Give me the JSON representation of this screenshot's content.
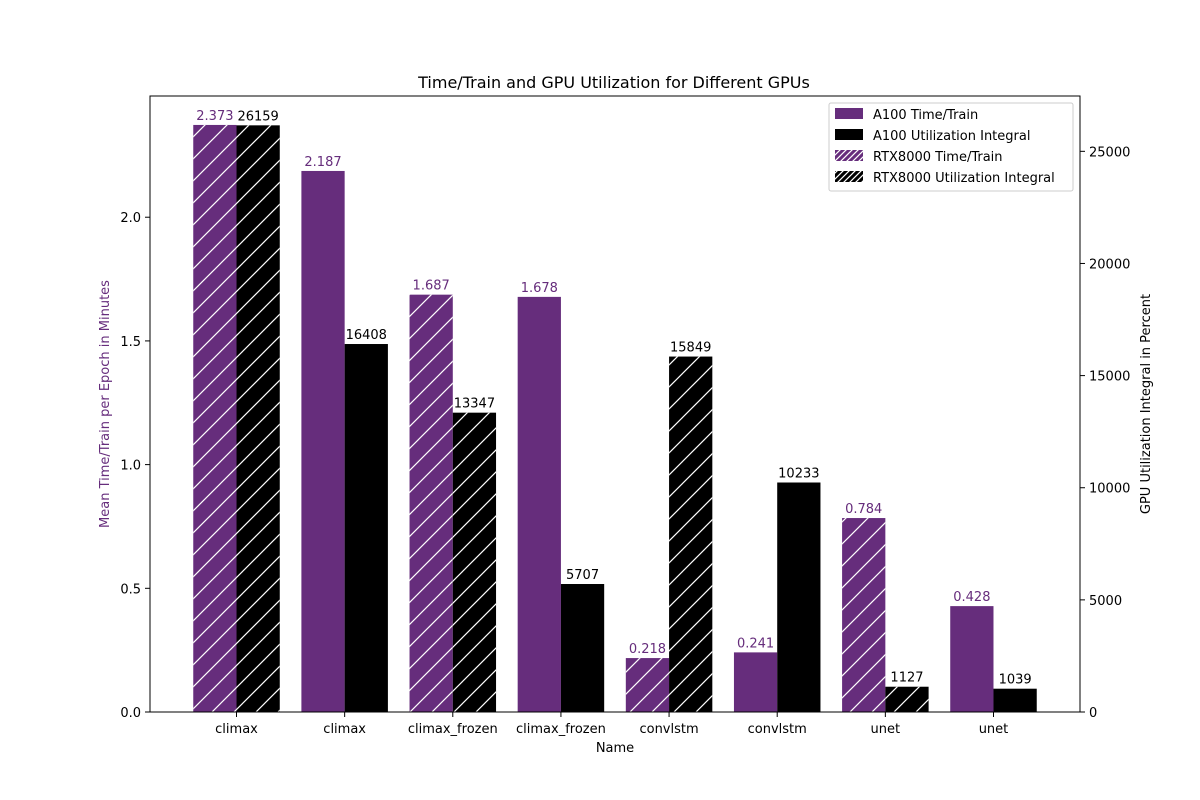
{
  "chart_data": {
    "type": "bar",
    "title": "Time/Train and GPU Utilization for Different GPUs",
    "xlabel": "Name",
    "ylabel_left": "Mean Time/Train per Epoch in Minutes",
    "ylabel_right": "GPU Utilization Integral in Percent",
    "categories": [
      "climax",
      "climax",
      "climax_frozen",
      "climax_frozen",
      "convlstm",
      "convlstm",
      "unet",
      "unet"
    ],
    "gpus": [
      "RTX8000",
      "A100",
      "RTX8000",
      "A100",
      "RTX8000",
      "A100",
      "RTX8000",
      "A100"
    ],
    "series": [
      {
        "name": "Time/Train",
        "axis": "left",
        "values": [
          2.373,
          2.187,
          1.687,
          1.678,
          0.218,
          0.241,
          0.784,
          0.428
        ],
        "labels": [
          "2.373",
          "2.187",
          "1.687",
          "1.678",
          "0.218",
          "0.241",
          "0.784",
          "0.428"
        ]
      },
      {
        "name": "Utilization Integral",
        "axis": "right",
        "values": [
          26159,
          16408,
          13347,
          5707,
          15849,
          10233,
          1127,
          1039
        ],
        "labels": [
          "26159",
          "16408",
          "13347",
          "5707",
          "15849",
          "10233",
          "1127",
          "1039"
        ]
      }
    ],
    "ylim_left": [
      0,
      2.49
    ],
    "ylim_right": [
      0,
      27467
    ],
    "yticks_left": [
      "0.0",
      "0.5",
      "1.0",
      "1.5",
      "2.0"
    ],
    "yticks_right": [
      "0",
      "5000",
      "10000",
      "15000",
      "20000",
      "25000"
    ],
    "legend": [
      {
        "label": "A100 Time/Train",
        "color": "#662d7c",
        "hatch": false
      },
      {
        "label": "A100 Utilization Integral",
        "color": "#000000",
        "hatch": false
      },
      {
        "label": "RTX8000 Time/Train",
        "color": "#662d7c",
        "hatch": true
      },
      {
        "label": "RTX8000 Utilization Integral",
        "color": "#000000",
        "hatch": true
      }
    ],
    "legend_position": "top-right",
    "grid": false,
    "colors": {
      "time": "#662d7c",
      "util": "#000000",
      "left_axis_label": "#662d7c"
    }
  }
}
